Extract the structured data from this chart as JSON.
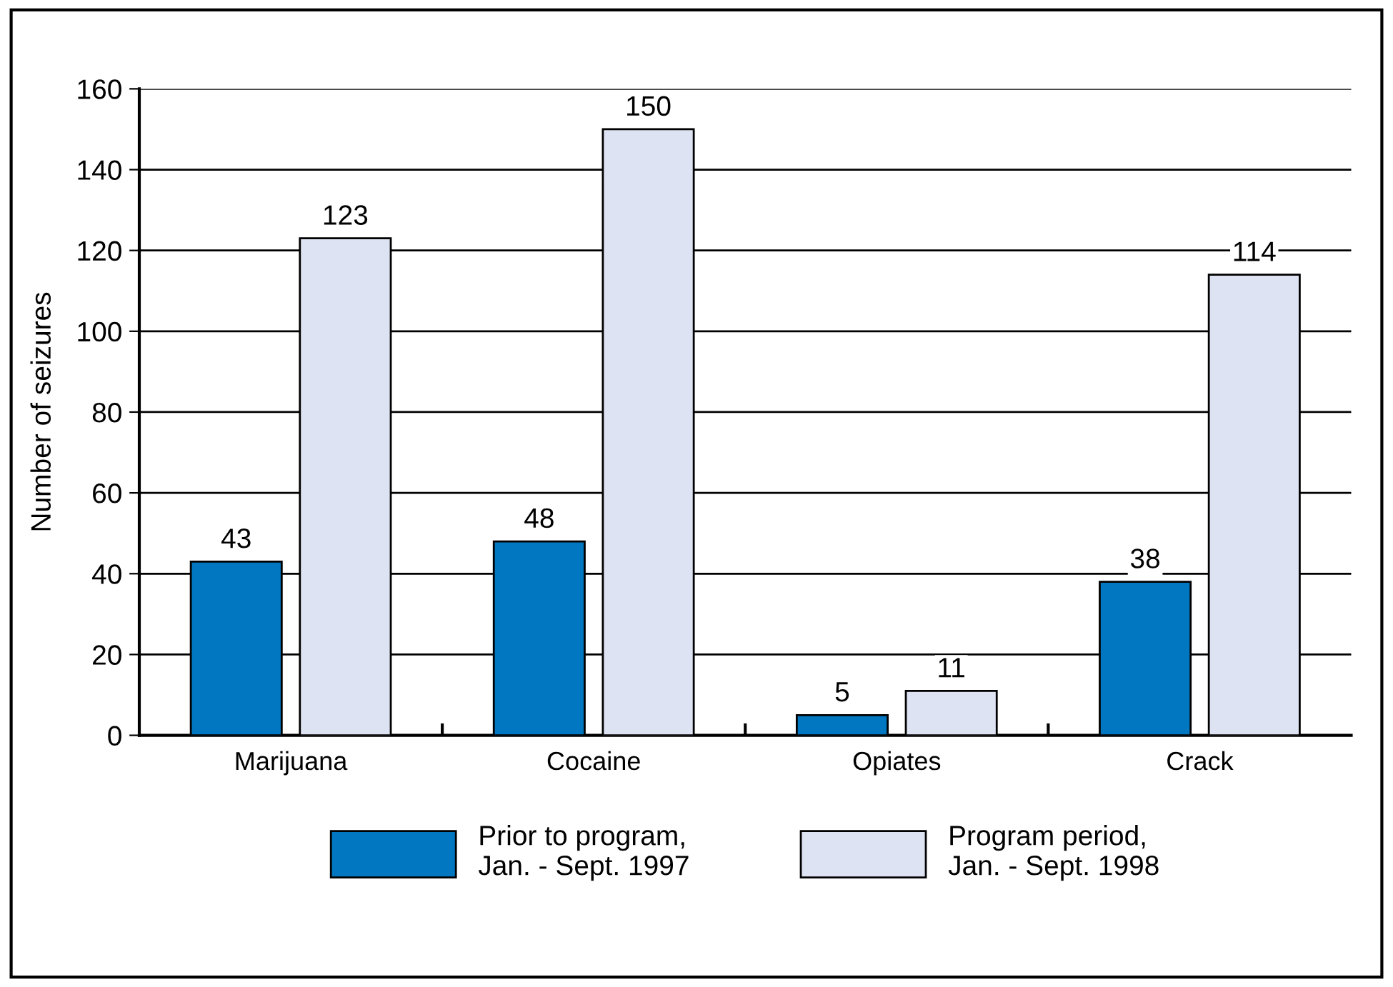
{
  "chart_data": {
    "type": "bar",
    "ylabel": "Number of seizures",
    "categories": [
      "Marijuana",
      "Cocaine",
      "Opiates",
      "Crack"
    ],
    "series": [
      {
        "name": "Prior to program,\nJan. - Sept. 1997",
        "color": "#0077c0",
        "values": [
          43,
          48,
          5,
          38
        ]
      },
      {
        "name": "Program period,\nJan. - Sept. 1998",
        "color": "#dde3f2",
        "values": [
          123,
          150,
          11,
          114
        ]
      }
    ],
    "ylim": [
      0,
      160
    ],
    "yticks": [
      0,
      20,
      40,
      60,
      80,
      100,
      120,
      140,
      160
    ],
    "grid": "y",
    "legend": "bottom",
    "data_labels": true
  }
}
